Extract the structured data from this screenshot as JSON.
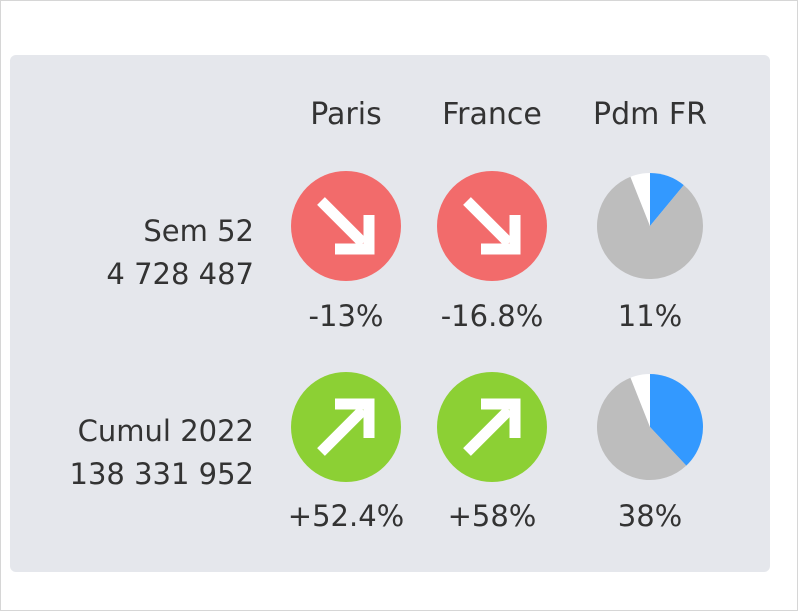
{
  "columns": [
    "Paris",
    "France",
    "Pdm FR"
  ],
  "rows": [
    {
      "label": "Sem 52",
      "value": "4 728 487",
      "paris": {
        "pct": "-13%",
        "trend": "down",
        "icon": "arrow-down-right-icon"
      },
      "france": {
        "pct": "-16.8%",
        "trend": "down",
        "icon": "arrow-down-right-icon"
      },
      "pdm": {
        "pct": "11%",
        "share": 0.11
      }
    },
    {
      "label": "Cumul 2022",
      "value": "138 331 952",
      "paris": {
        "pct": "+52.4%",
        "trend": "up",
        "icon": "arrow-up-right-icon"
      },
      "france": {
        "pct": "+58%",
        "trend": "up",
        "icon": "arrow-up-right-icon"
      },
      "pdm": {
        "pct": "38%",
        "share": 0.38
      }
    }
  ],
  "colors": {
    "down": "#f26b6b",
    "up": "#8cd034",
    "share": "#3399ff",
    "rest": "#bdbdbd",
    "gap": "#ffffff",
    "card": "#e5e7ec",
    "text": "#333333"
  }
}
